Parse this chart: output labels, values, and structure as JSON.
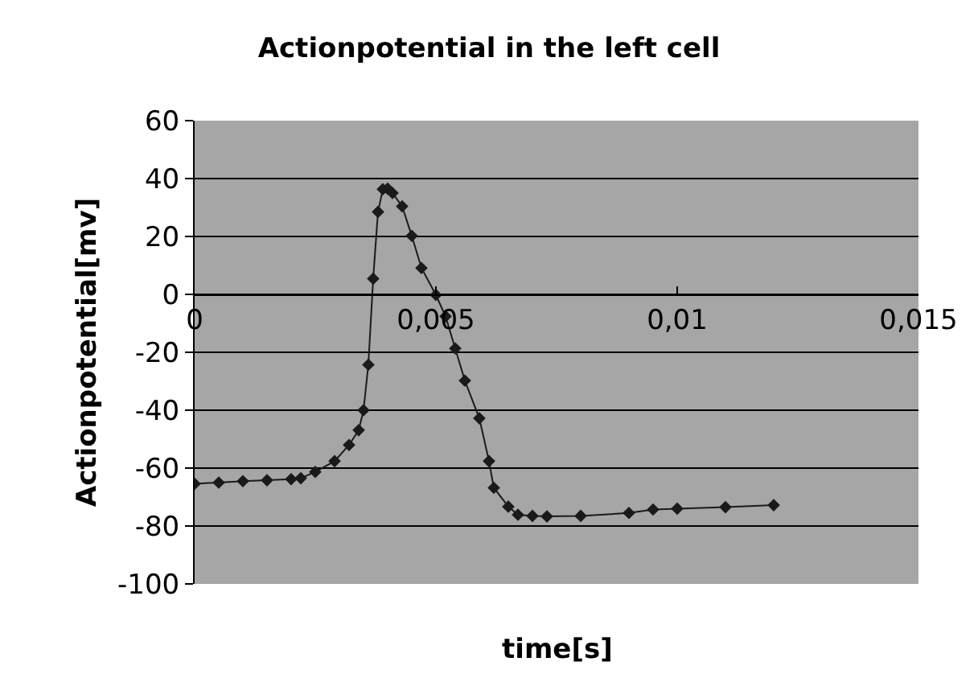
{
  "chart_data": {
    "type": "line",
    "title": "Actionpotential in the left cell",
    "xlabel": "time[s]",
    "ylabel": "Actionpotential[mv]",
    "x": [
      0,
      0.0005,
      0.001,
      0.0015,
      0.002,
      0.0022,
      0.0025,
      0.0029,
      0.0032,
      0.0034,
      0.0035,
      0.0036,
      0.0037,
      0.0038,
      0.0039,
      0.004,
      0.0041,
      0.0043,
      0.0045,
      0.0047,
      0.005,
      0.0052,
      0.0054,
      0.0056,
      0.0059,
      0.0061,
      0.0062,
      0.0065,
      0.0067,
      0.007,
      0.0073,
      0.008,
      0.009,
      0.0095,
      0.01,
      0.011,
      0.012
    ],
    "series": [
      {
        "color": "#1a1a1a",
        "values": [
          -65.4,
          -65,
          -64.5,
          -64.2,
          -63.8,
          -63.5,
          -61.3,
          -57.6,
          -52,
          -46.9,
          -40,
          -24.3,
          5.4,
          28.5,
          36.3,
          36.5,
          35,
          30.4,
          20.2,
          9.1,
          -0.2,
          -7.6,
          -18.7,
          -29.8,
          -42.8,
          -57.6,
          -66.8,
          -73.3,
          -76.1,
          -76.5,
          -76.7,
          -76.5,
          -75.5,
          -74.3,
          -74,
          -73.5,
          -72.8
        ]
      }
    ],
    "xlim": [
      0,
      0.015
    ],
    "xticks": [
      0,
      {
        "value": 0.005,
        "label": "0,005"
      },
      {
        "value": 0.01,
        "label": "0,01"
      },
      {
        "value": 0.015,
        "label": "0,015"
      }
    ],
    "ylim": [
      -100,
      60
    ],
    "yticks": [
      -100,
      -80,
      -60,
      -40,
      -20,
      0,
      20,
      40,
      60
    ],
    "grid": "y",
    "marker": "diamond",
    "line_style": "solid"
  }
}
